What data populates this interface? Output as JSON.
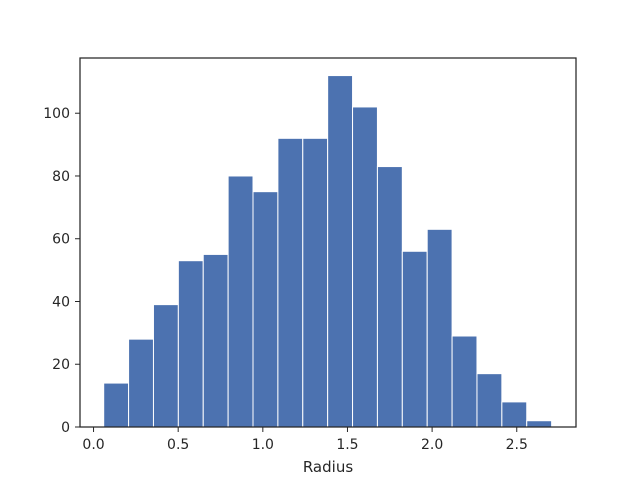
{
  "chart_data": {
    "type": "bar",
    "subtype": "histogram",
    "title": "",
    "xlabel": "Radius",
    "ylabel": "",
    "xlim": [
      -0.08,
      2.85
    ],
    "ylim": [
      0,
      117.6
    ],
    "grid": false,
    "legend": "none",
    "colors": {
      "bar_fill": "#4c72b0",
      "bar_edge": "#ffffff",
      "axis": "#262626",
      "background": "#ffffff"
    },
    "bin_edges": [
      0.06,
      0.207,
      0.354,
      0.501,
      0.648,
      0.795,
      0.942,
      1.089,
      1.236,
      1.383,
      1.53,
      1.677,
      1.824,
      1.971,
      2.118,
      2.265,
      2.412,
      2.559,
      2.706
    ],
    "values": [
      14,
      28,
      39,
      53,
      55,
      80,
      75,
      92,
      92,
      112,
      102,
      83,
      56,
      63,
      29,
      17,
      8,
      2
    ],
    "x_ticks": [
      {
        "value": 0.0,
        "label": "0.0"
      },
      {
        "value": 0.5,
        "label": "0.5"
      },
      {
        "value": 1.0,
        "label": "1.0"
      },
      {
        "value": 1.5,
        "label": "1.5"
      },
      {
        "value": 2.0,
        "label": "2.0"
      },
      {
        "value": 2.5,
        "label": "2.5"
      }
    ],
    "y_ticks": [
      {
        "value": 0,
        "label": "0"
      },
      {
        "value": 20,
        "label": "20"
      },
      {
        "value": 40,
        "label": "40"
      },
      {
        "value": 60,
        "label": "60"
      },
      {
        "value": 80,
        "label": "80"
      },
      {
        "value": 100,
        "label": "100"
      }
    ]
  }
}
